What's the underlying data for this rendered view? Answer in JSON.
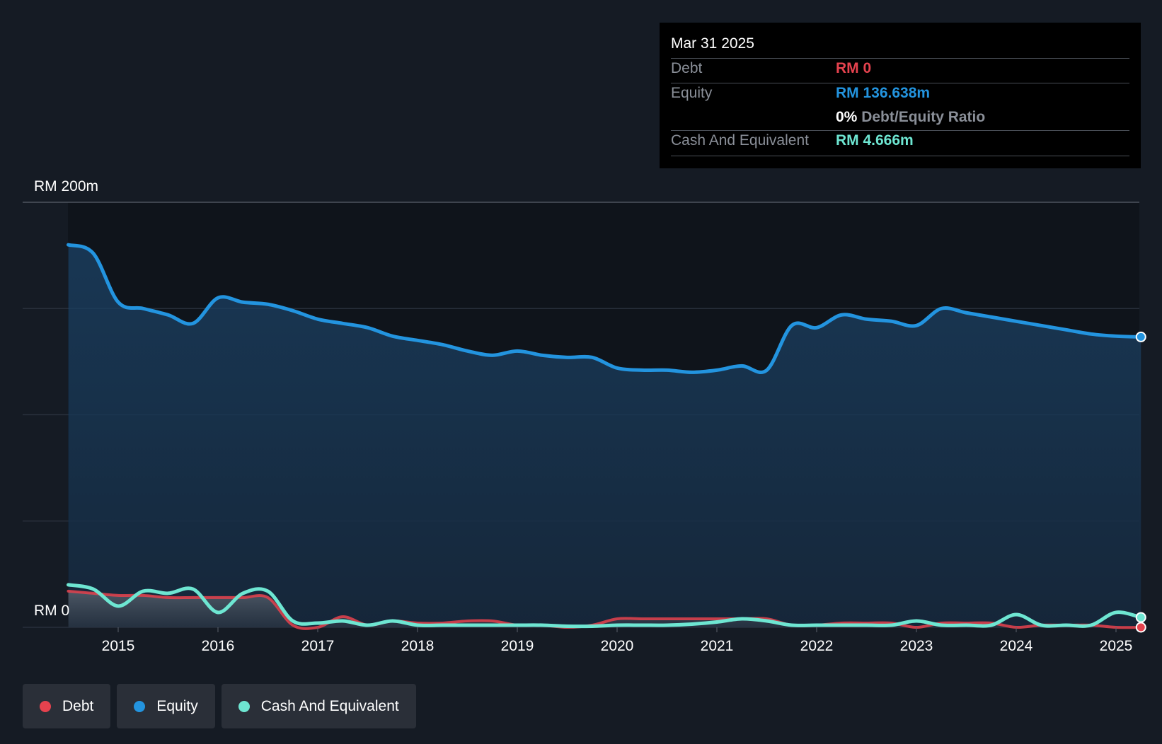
{
  "tooltip": {
    "date": "Mar 31 2025",
    "debt_label": "Debt",
    "debt_value": "RM 0",
    "equity_label": "Equity",
    "equity_value": "RM 136.638m",
    "ratio_value": "0%",
    "ratio_label": "Debt/Equity Ratio",
    "cash_label": "Cash And Equivalent",
    "cash_value": "RM 4.666m"
  },
  "legend": [
    {
      "label": "Debt",
      "color": "#e5424e"
    },
    {
      "label": "Equity",
      "color": "#2394df"
    },
    {
      "label": "Cash And Equivalent",
      "color": "#6ee6d2"
    }
  ],
  "chart_data": {
    "type": "area",
    "y_top_label": "RM 200m",
    "y_bottom_label": "RM 0",
    "ylim": [
      0,
      200
    ],
    "xlim": [
      2014.0,
      2025.25
    ],
    "x_ticks": [
      "2015",
      "2016",
      "2017",
      "2018",
      "2019",
      "2020",
      "2021",
      "2022",
      "2023",
      "2024",
      "2025"
    ],
    "grid": true,
    "legend_position": "bottom-left",
    "series": [
      {
        "name": "Equity",
        "color": "#2394df",
        "x": [
          2014.5,
          2014.75,
          2015.0,
          2015.25,
          2015.5,
          2015.75,
          2016.0,
          2016.25,
          2016.5,
          2016.75,
          2017.0,
          2017.25,
          2017.5,
          2017.75,
          2018.0,
          2018.25,
          2018.5,
          2018.75,
          2019.0,
          2019.25,
          2019.5,
          2019.75,
          2020.0,
          2020.25,
          2020.5,
          2020.75,
          2021.0,
          2021.25,
          2021.5,
          2021.75,
          2022.0,
          2022.25,
          2022.5,
          2022.75,
          2023.0,
          2023.25,
          2023.5,
          2023.75,
          2024.0,
          2024.25,
          2024.5,
          2024.75,
          2025.0,
          2025.25
        ],
        "values": [
          180,
          176,
          153,
          150,
          147,
          143,
          155,
          153,
          152,
          149,
          145,
          143,
          141,
          137,
          135,
          133,
          130,
          128,
          130,
          128,
          127,
          127,
          122,
          121,
          121,
          120,
          121,
          123,
          121,
          142,
          141,
          147,
          145,
          144,
          142,
          150,
          148,
          146,
          144,
          142,
          140,
          138,
          137,
          136.638
        ]
      },
      {
        "name": "Debt",
        "color": "#e5424e",
        "x": [
          2014.5,
          2014.75,
          2015.0,
          2015.25,
          2015.5,
          2015.75,
          2016.0,
          2016.25,
          2016.5,
          2016.75,
          2017.0,
          2017.25,
          2017.5,
          2017.75,
          2018.0,
          2018.25,
          2018.5,
          2018.75,
          2019.0,
          2019.25,
          2019.5,
          2019.75,
          2020.0,
          2020.25,
          2020.5,
          2020.75,
          2021.0,
          2021.25,
          2021.5,
          2021.75,
          2022.0,
          2022.25,
          2022.5,
          2022.75,
          2023.0,
          2023.25,
          2023.5,
          2023.75,
          2024.0,
          2024.25,
          2024.5,
          2024.75,
          2025.0,
          2025.25
        ],
        "values": [
          17,
          16,
          15,
          15,
          14,
          14,
          14,
          14,
          14,
          1,
          0,
          5,
          1,
          3,
          2,
          2,
          3,
          3,
          1,
          1,
          0,
          1,
          4,
          4,
          4,
          4,
          4,
          4,
          4,
          1,
          1,
          2,
          2,
          2,
          0,
          2,
          2,
          2,
          0,
          1,
          1,
          1,
          0,
          0
        ]
      },
      {
        "name": "Cash And Equivalent",
        "color": "#6ee6d2",
        "x": [
          2014.5,
          2014.75,
          2015.0,
          2015.25,
          2015.5,
          2015.75,
          2016.0,
          2016.25,
          2016.5,
          2016.75,
          2017.0,
          2017.25,
          2017.5,
          2017.75,
          2018.0,
          2018.25,
          2018.5,
          2018.75,
          2019.0,
          2019.25,
          2019.5,
          2019.75,
          2020.0,
          2020.25,
          2020.5,
          2020.75,
          2021.0,
          2021.25,
          2021.5,
          2021.75,
          2022.0,
          2022.25,
          2022.5,
          2022.75,
          2023.0,
          2023.25,
          2023.5,
          2023.75,
          2024.0,
          2024.25,
          2024.5,
          2024.75,
          2025.0,
          2025.25
        ],
        "values": [
          20,
          18,
          10,
          17,
          16,
          18,
          7,
          16,
          17,
          3,
          2,
          3,
          1,
          3,
          1,
          1,
          1,
          1,
          1,
          1,
          0.5,
          0.5,
          1,
          1,
          1,
          1.5,
          2.5,
          4,
          3,
          1,
          1,
          1,
          1,
          1,
          3,
          1,
          1,
          1,
          6,
          1,
          1,
          1,
          7,
          4.666
        ]
      }
    ]
  }
}
